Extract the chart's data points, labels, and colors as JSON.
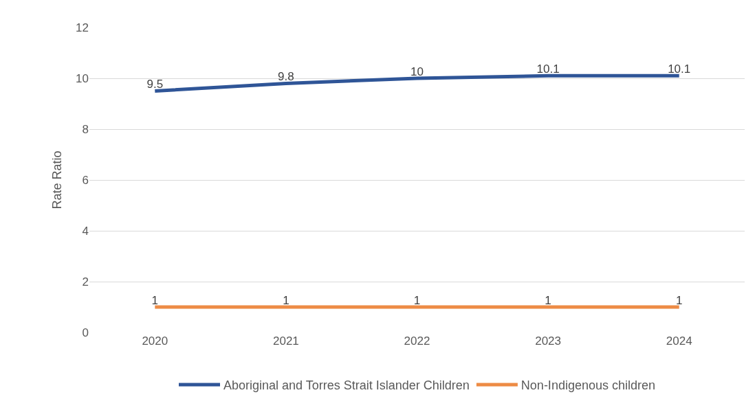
{
  "chart_data": {
    "type": "line",
    "ylabel": "Rate Ratio",
    "categories": [
      "2020",
      "2021",
      "2022",
      "2023",
      "2024"
    ],
    "series": [
      {
        "name": "Aboriginal and Torres Strait Islander Children",
        "color": "#2f5597",
        "values": [
          9.5,
          9.8,
          10,
          10.1,
          10.1
        ]
      },
      {
        "name": "Non-Indigenous children",
        "color": "#ed8b45",
        "values": [
          1,
          1,
          1,
          1,
          1
        ]
      }
    ],
    "ylim": [
      0,
      12
    ],
    "yticks": [
      0,
      2,
      4,
      6,
      8,
      10,
      12
    ],
    "grid": "y",
    "legend": "bottom",
    "data_labels": true,
    "marker": "none",
    "line_style": "solid"
  }
}
